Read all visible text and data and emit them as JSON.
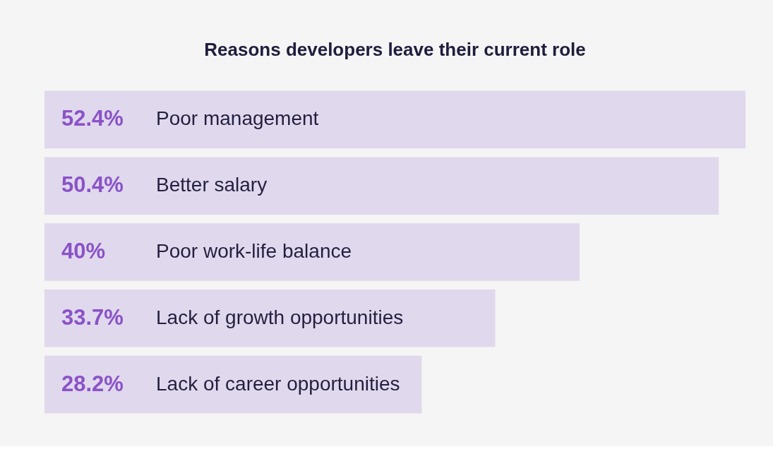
{
  "chart_data": {
    "type": "bar",
    "orientation": "horizontal",
    "title": "Reasons developers leave their current role",
    "categories": [
      "Poor management",
      "Better salary",
      "Poor work-life balance",
      "Lack of growth opportunities",
      "Lack of career opportunities"
    ],
    "values": [
      52.4,
      50.4,
      40,
      33.7,
      28.2
    ],
    "value_labels": [
      "52.4%",
      "50.4%",
      "40%",
      "33.7%",
      "28.2%"
    ],
    "color": "#e0d8ec",
    "xlim": [
      0,
      52.4
    ],
    "tick_labels": false
  }
}
